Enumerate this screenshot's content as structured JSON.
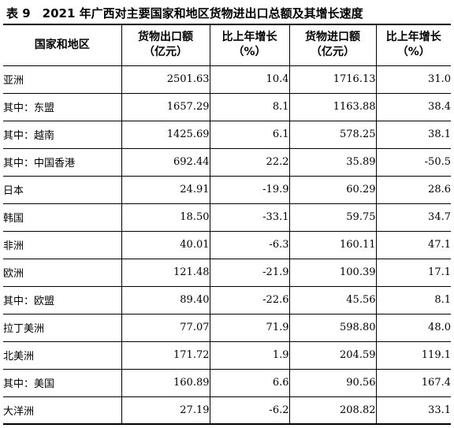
{
  "title": "表 9　2021 年广西对主要国家和地区货物进出口总额及其增长速度",
  "headers": {
    "region": "国家和地区",
    "export_line1": "货物出口额",
    "export_line2": "（亿元）",
    "export_growth_line1": "比上年增长",
    "export_growth_line2": "（%）",
    "import_line1": "货物进口额",
    "import_line2": "（亿元）",
    "import_growth_line1": "比上年增长",
    "import_growth_line2": "（%）"
  },
  "rows": [
    {
      "region": "亚洲",
      "export": "2501.63",
      "export_growth": "10.4",
      "import": "1716.13",
      "import_growth": "31.0"
    },
    {
      "region": "其中：东盟",
      "export": "1657.29",
      "export_growth": "8.1",
      "import": "1163.88",
      "import_growth": "38.4"
    },
    {
      "region": "其中：越南",
      "export": "1425.69",
      "export_growth": "6.1",
      "import": "578.25",
      "import_growth": "38.1"
    },
    {
      "region": "其中：中国香港",
      "export": "692.44",
      "export_growth": "22.2",
      "import": "35.89",
      "import_growth": "-50.5"
    },
    {
      "region": "日本",
      "export": "24.91",
      "export_growth": "-19.9",
      "import": "60.29",
      "import_growth": "28.6"
    },
    {
      "region": "韩国",
      "export": "18.50",
      "export_growth": "-33.1",
      "import": "59.75",
      "import_growth": "34.7"
    },
    {
      "region": "非洲",
      "export": "40.01",
      "export_growth": "-6.3",
      "import": "160.11",
      "import_growth": "47.1"
    },
    {
      "region": "欧洲",
      "export": "121.48",
      "export_growth": "-21.9",
      "import": "100.39",
      "import_growth": "17.1"
    },
    {
      "region": "其中：欧盟",
      "export": "89.40",
      "export_growth": "-22.6",
      "import": "45.56",
      "import_growth": "8.1"
    },
    {
      "region": "拉丁美洲",
      "export": "77.07",
      "export_growth": "71.9",
      "import": "598.80",
      "import_growth": "48.0"
    },
    {
      "region": "北美洲",
      "export": "171.72",
      "export_growth": "1.9",
      "import": "204.59",
      "import_growth": "119.1"
    },
    {
      "region": "其中：美国",
      "export": "160.89",
      "export_growth": "6.6",
      "import": "90.56",
      "import_growth": "167.4"
    },
    {
      "region": "大洋洲",
      "export": "27.19",
      "export_growth": "-6.2",
      "import": "208.82",
      "import_growth": "33.1"
    }
  ]
}
